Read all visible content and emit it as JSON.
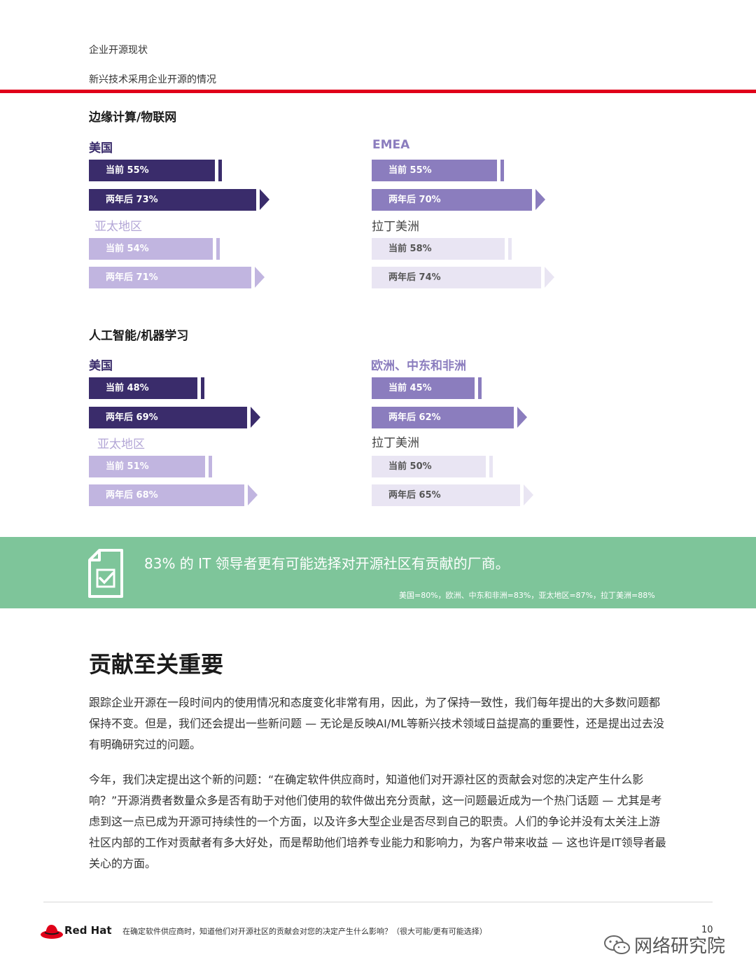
{
  "header": {
    "line1": "企业开源现状",
    "line2": "新兴技术采用企业开源的情况"
  },
  "sections": [
    {
      "title": "边缘计算/物联网",
      "regions": [
        {
          "name": "美国",
          "current_label": "当前 55%",
          "current": 55,
          "future_label": "两年后 73%",
          "future": 73
        },
        {
          "name": "EMEA",
          "current_label": "当前 55%",
          "current": 55,
          "future_label": "两年后 70%",
          "future": 70
        },
        {
          "name": "亚太地区",
          "current_label": "当前 54%",
          "current": 54,
          "future_label": "两年后 71%",
          "future": 71
        },
        {
          "name": "拉丁美洲",
          "current_label": "当前 58%",
          "current": 58,
          "future_label": "两年后 74%",
          "future": 74
        }
      ]
    },
    {
      "title": "人工智能/机器学习",
      "regions": [
        {
          "name": "美国",
          "current_label": "当前 48%",
          "current": 48,
          "future_label": "两年后 69%",
          "future": 69
        },
        {
          "name": "欧洲、中东和非洲",
          "current_label": "当前 45%",
          "current": 45,
          "future_label": "两年后 62%",
          "future": 62
        },
        {
          "name": "亚太地区",
          "current_label": "当前 51%",
          "current": 51,
          "future_label": "两年后 68%",
          "future": 68
        },
        {
          "name": "拉丁美洲",
          "current_label": "当前 50%",
          "current": 50,
          "future_label": "两年后 65%",
          "future": 65
        }
      ]
    }
  ],
  "colors": {
    "bar_dark": "#3a2c6b",
    "bar_mid": "#8b7dbe",
    "bar_light": "#c1b5e0",
    "bar_pale": "#e9e5f3",
    "band": "#7ec59a",
    "rule": "#e00019"
  },
  "callout": {
    "icon": "document-check-icon",
    "main": "83% 的 IT 领导者更有可能选择对开源社区有贡献的厂商。",
    "sub": "美国=80%，欧洲、中东和非洲=83%，亚太地区=87%，拉丁美洲=88%"
  },
  "body": {
    "heading": "贡献至关重要",
    "paragraphs": [
      "跟踪企业开源在一段时间内的使用情况和态度变化非常有用，因此，为了保持一致性，我们每年提出的大多数问题都保持不变。但是，我们还会提出一些新问题 — 无论是反映AI/ML等新兴技术领域日益提高的重要性，还是提出过去没有明确研究过的问题。",
      "今年，我们决定提出这个新的问题：“在确定软件供应商时，知道他们对开源社区的贡献会对您的决定产生什么影响？”开源消费者数量众多是否有助于对他们使用的软件做出充分贡献，这一问题最近成为一个热门话题 — 尤其是考虑到这一点已成为开源可持续性的一个方面，以及许多大型企业是否尽到自己的职责。人们的争论并没有太关注上游社区内部的工作对贡献者有多大好处，而是帮助他们培养专业能力和影响力，为客户带来收益 — 这也许是IT领导者最关心的方面。"
    ]
  },
  "footer": {
    "brand": "Red Hat",
    "note": "在确定软件供应商时，知道他们对开源社区的贡献会对您的决定产生什么影响？（很大可能/更有可能选择）",
    "page": "10",
    "watermark": "网络研究院"
  }
}
